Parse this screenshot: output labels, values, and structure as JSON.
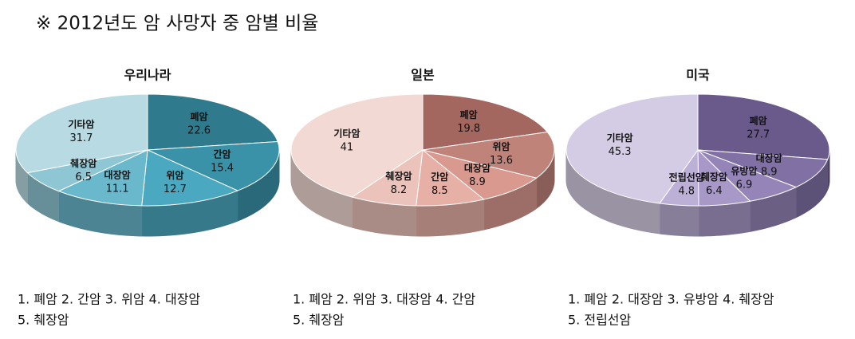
{
  "title": "※  2012년도 암 사망자 중 암별 비율",
  "chart_data": [
    {
      "type": "pie",
      "title": "우리나라",
      "categories": [
        "폐암",
        "간암",
        "위암",
        "대장암",
        "췌장암",
        "기타암"
      ],
      "values": [
        22.6,
        15.4,
        12.7,
        11.1,
        6.5,
        31.7
      ],
      "colors": [
        "#2f7a8c",
        "#3a92a8",
        "#4aa8c0",
        "#6ab8cc",
        "#8ec6d4",
        "#b8dbe3"
      ],
      "notes": [
        "1. 폐암 2. 간암 3. 위암 4. 대장암",
        "5. 췌장암"
      ]
    },
    {
      "type": "pie",
      "title": "일본",
      "categories": [
        "폐암",
        "위암",
        "대장암",
        "간암",
        "췌장암",
        "기타암"
      ],
      "values": [
        19.8,
        13.6,
        8.9,
        8.5,
        8.2,
        41
      ],
      "colors": [
        "#a4675f",
        "#c0837a",
        "#d9998f",
        "#e6b0a6",
        "#ecc3bb",
        "#f2d9d4"
      ],
      "notes": [
        "1. 폐암 2. 위암 3. 대장암 4. 간암",
        "5. 췌장암"
      ]
    },
    {
      "type": "pie",
      "title": "미국",
      "categories": [
        "폐암",
        "대장암",
        "유방암",
        "췌장암",
        "전립선암",
        "기타암"
      ],
      "values": [
        27.7,
        8.9,
        6.9,
        6.4,
        4.8,
        45.3
      ],
      "colors": [
        "#6a5a8c",
        "#8070a4",
        "#9484b8",
        "#a898c8",
        "#bcb0d6",
        "#d4cce4"
      ],
      "notes": [
        "1. 폐암 2. 대장암 3. 유방암 4. 췌장암",
        "5. 전립선암"
      ]
    }
  ]
}
